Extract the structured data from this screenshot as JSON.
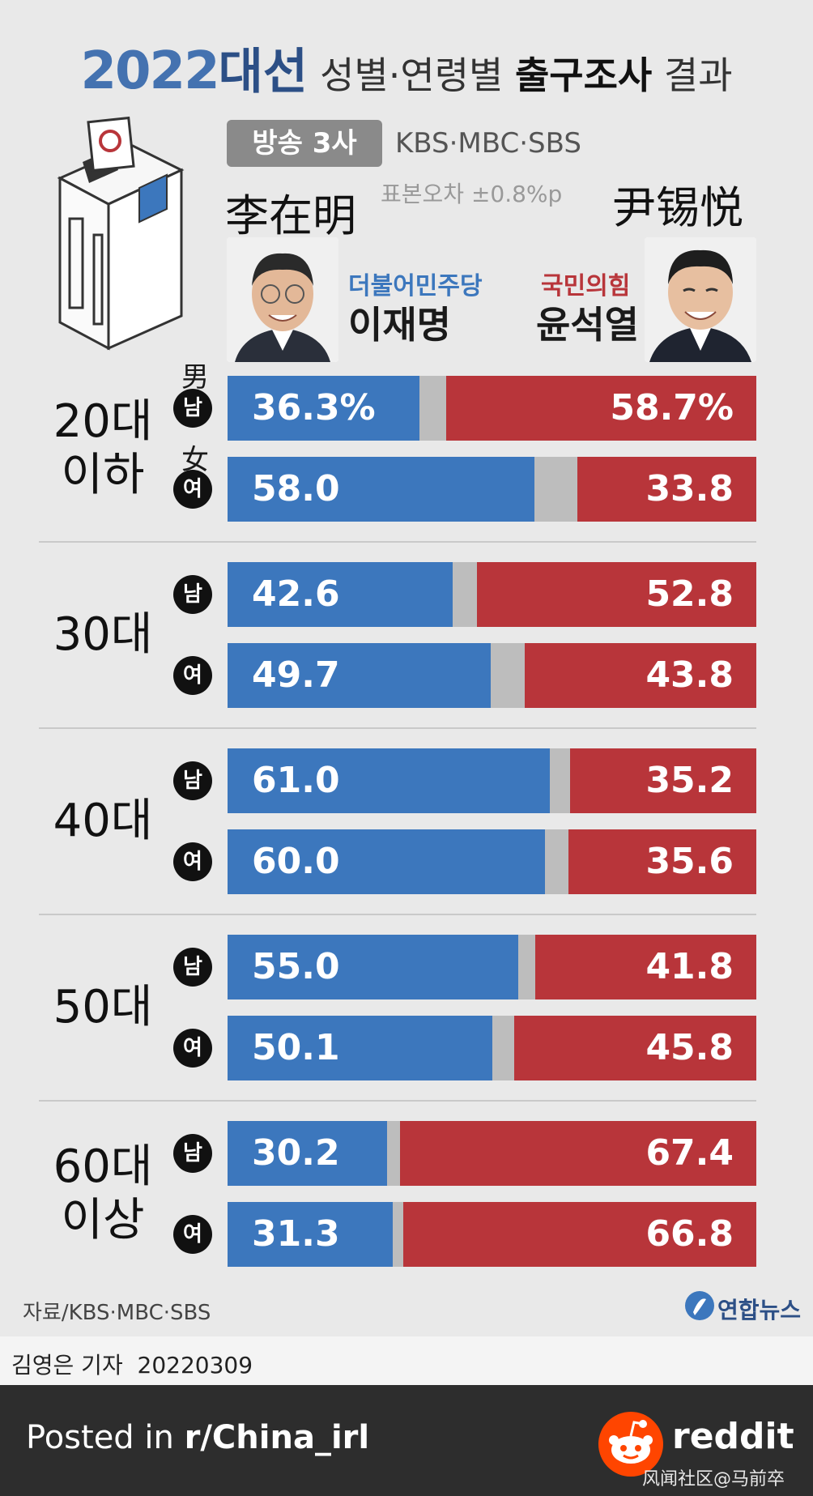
{
  "title": {
    "year": "2022",
    "election": "대선",
    "subtitle_pre": "성별·연령별 ",
    "subtitle_bold": "출구조사",
    "subtitle_post": " 결과"
  },
  "source_badge": "방송 3사",
  "networks": "KBS·MBC·SBS",
  "sample_note": "표본오차 ±0.8%p",
  "gender_overlay": {
    "male": "男",
    "female": "女"
  },
  "candidates": {
    "left": {
      "name_cn": "李在明",
      "party": "더불어민주당",
      "name_kr": "이재명",
      "color": "#3c77bd"
    },
    "right": {
      "name_cn": "尹锡悦",
      "party": "국민의힘",
      "name_kr": "윤석열",
      "color": "#b8353a"
    }
  },
  "gender_labels": {
    "male": "남",
    "female": "여"
  },
  "chart_data": {
    "type": "bar",
    "title": "2022대선 성별·연령별 출구조사 결과",
    "unit": "%",
    "series": [
      {
        "name": "이재명 (더불어민주당)",
        "color": "#3c77bd"
      },
      {
        "name": "윤석열 (국민의힘)",
        "color": "#b8353a"
      }
    ],
    "groups": [
      {
        "age": [
          "20대",
          "이하"
        ],
        "rows": [
          {
            "gender": "남",
            "lee": 36.3,
            "yoon": 58.7,
            "lee_label": "36.3%",
            "yoon_label": "58.7%"
          },
          {
            "gender": "여",
            "lee": 58.0,
            "yoon": 33.8,
            "lee_label": "58.0",
            "yoon_label": "33.8"
          }
        ]
      },
      {
        "age": [
          "30대"
        ],
        "rows": [
          {
            "gender": "남",
            "lee": 42.6,
            "yoon": 52.8,
            "lee_label": "42.6",
            "yoon_label": "52.8"
          },
          {
            "gender": "여",
            "lee": 49.7,
            "yoon": 43.8,
            "lee_label": "49.7",
            "yoon_label": "43.8"
          }
        ]
      },
      {
        "age": [
          "40대"
        ],
        "rows": [
          {
            "gender": "남",
            "lee": 61.0,
            "yoon": 35.2,
            "lee_label": "61.0",
            "yoon_label": "35.2"
          },
          {
            "gender": "여",
            "lee": 60.0,
            "yoon": 35.6,
            "lee_label": "60.0",
            "yoon_label": "35.6"
          }
        ]
      },
      {
        "age": [
          "50대"
        ],
        "rows": [
          {
            "gender": "남",
            "lee": 55.0,
            "yoon": 41.8,
            "lee_label": "55.0",
            "yoon_label": "41.8"
          },
          {
            "gender": "여",
            "lee": 50.1,
            "yoon": 45.8,
            "lee_label": "50.1",
            "yoon_label": "45.8"
          }
        ]
      },
      {
        "age": [
          "60대",
          "이상"
        ],
        "rows": [
          {
            "gender": "남",
            "lee": 30.2,
            "yoon": 67.4,
            "lee_label": "30.2",
            "yoon_label": "67.4"
          },
          {
            "gender": "여",
            "lee": 31.3,
            "yoon": 66.8,
            "lee_label": "31.3",
            "yoon_label": "66.8"
          }
        ]
      }
    ]
  },
  "footer": {
    "source": "자료/KBS·MBC·SBS",
    "agency": "연합뉴스",
    "credit_name": "김영은 기자",
    "credit_date": "20220309"
  },
  "reddit": {
    "posted_prefix": "Posted in ",
    "subreddit": "r/China_irl",
    "brand": "reddit",
    "watermark": "风闻社区@马前卒"
  },
  "icons": [
    "ballot-box-icon",
    "lee-photo",
    "yoon-photo",
    "yonhap-logo-icon",
    "reddit-logo-icon"
  ]
}
